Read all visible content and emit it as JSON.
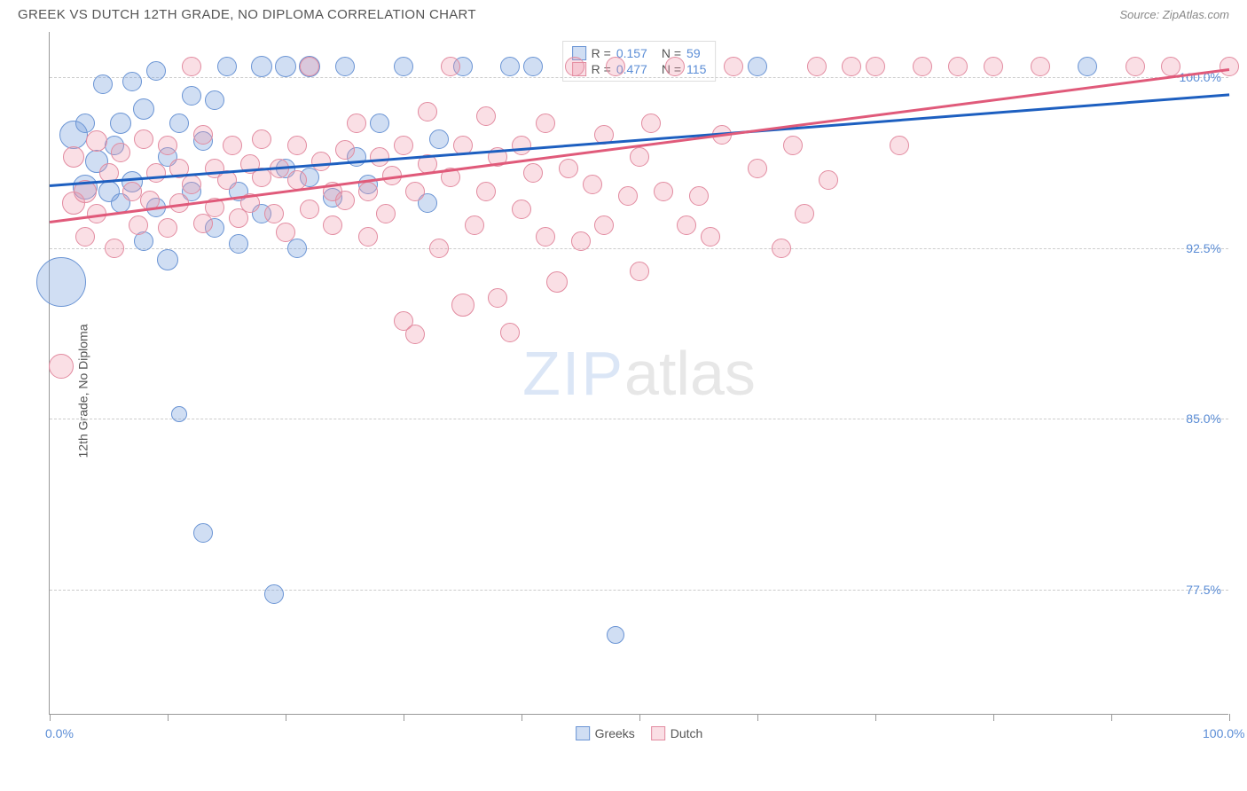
{
  "header": {
    "title": "GREEK VS DUTCH 12TH GRADE, NO DIPLOMA CORRELATION CHART",
    "source": "Source: ZipAtlas.com"
  },
  "chart": {
    "type": "scatter",
    "y_axis_label": "12th Grade, No Diploma",
    "xlim": [
      0,
      100
    ],
    "ylim": [
      72,
      102
    ],
    "x_ticks": [
      0,
      10,
      20,
      30,
      40,
      50,
      60,
      70,
      80,
      90,
      100
    ],
    "x_tick_labels": {
      "0": "0.0%",
      "100": "100.0%"
    },
    "y_grid": [
      77.5,
      85.0,
      92.5,
      100.0
    ],
    "y_tick_labels": [
      "77.5%",
      "85.0%",
      "92.5%",
      "100.0%"
    ],
    "background_color": "#ffffff",
    "grid_color": "#cccccc",
    "axis_color": "#999999",
    "tick_label_color": "#5b8dd6",
    "series": [
      {
        "name": "Greeks",
        "fill": "rgba(120,160,220,0.35)",
        "stroke": "#6a94d4",
        "line_color": "#1d5fc0",
        "R": "0.157",
        "N": "59",
        "trend": {
          "x1": 0,
          "y1": 95.3,
          "x2": 100,
          "y2": 99.3
        },
        "points": [
          {
            "x": 1,
            "y": 91.0,
            "r": 28
          },
          {
            "x": 2,
            "y": 97.5,
            "r": 16
          },
          {
            "x": 3,
            "y": 95.2,
            "r": 14
          },
          {
            "x": 3,
            "y": 98.0,
            "r": 11
          },
          {
            "x": 4,
            "y": 96.3,
            "r": 13
          },
          {
            "x": 4.5,
            "y": 99.7,
            "r": 11
          },
          {
            "x": 5,
            "y": 95.0,
            "r": 12
          },
          {
            "x": 5.5,
            "y": 97.0,
            "r": 11
          },
          {
            "x": 6,
            "y": 98.0,
            "r": 12
          },
          {
            "x": 6,
            "y": 94.5,
            "r": 11
          },
          {
            "x": 7,
            "y": 95.4,
            "r": 12
          },
          {
            "x": 7,
            "y": 99.8,
            "r": 11
          },
          {
            "x": 8,
            "y": 92.8,
            "r": 11
          },
          {
            "x": 8,
            "y": 98.6,
            "r": 12
          },
          {
            "x": 9,
            "y": 94.3,
            "r": 11
          },
          {
            "x": 9,
            "y": 100.3,
            "r": 11
          },
          {
            "x": 10,
            "y": 96.5,
            "r": 11
          },
          {
            "x": 10,
            "y": 92.0,
            "r": 12
          },
          {
            "x": 11,
            "y": 85.2,
            "r": 9
          },
          {
            "x": 11,
            "y": 98.0,
            "r": 11
          },
          {
            "x": 12,
            "y": 95.0,
            "r": 11
          },
          {
            "x": 12,
            "y": 99.2,
            "r": 11
          },
          {
            "x": 13,
            "y": 80.0,
            "r": 11
          },
          {
            "x": 13,
            "y": 97.2,
            "r": 11
          },
          {
            "x": 14,
            "y": 93.4,
            "r": 11
          },
          {
            "x": 14,
            "y": 99.0,
            "r": 11
          },
          {
            "x": 15,
            "y": 100.5,
            "r": 11
          },
          {
            "x": 16,
            "y": 95.0,
            "r": 11
          },
          {
            "x": 16,
            "y": 92.7,
            "r": 11
          },
          {
            "x": 18,
            "y": 100.5,
            "r": 12
          },
          {
            "x": 18,
            "y": 94.0,
            "r": 11
          },
          {
            "x": 19,
            "y": 77.3,
            "r": 11
          },
          {
            "x": 20,
            "y": 96.0,
            "r": 11
          },
          {
            "x": 20,
            "y": 100.5,
            "r": 12
          },
          {
            "x": 21,
            "y": 92.5,
            "r": 11
          },
          {
            "x": 22,
            "y": 95.6,
            "r": 11
          },
          {
            "x": 22,
            "y": 100.5,
            "r": 12
          },
          {
            "x": 24,
            "y": 94.7,
            "r": 11
          },
          {
            "x": 25,
            "y": 100.5,
            "r": 11
          },
          {
            "x": 26,
            "y": 96.5,
            "r": 11
          },
          {
            "x": 27,
            "y": 95.3,
            "r": 11
          },
          {
            "x": 28,
            "y": 98.0,
            "r": 11
          },
          {
            "x": 30,
            "y": 100.5,
            "r": 11
          },
          {
            "x": 32,
            "y": 94.5,
            "r": 11
          },
          {
            "x": 33,
            "y": 97.3,
            "r": 11
          },
          {
            "x": 35,
            "y": 100.5,
            "r": 11
          },
          {
            "x": 39,
            "y": 100.5,
            "r": 11
          },
          {
            "x": 41,
            "y": 100.5,
            "r": 11
          },
          {
            "x": 48,
            "y": 75.5,
            "r": 10
          },
          {
            "x": 60,
            "y": 100.5,
            "r": 11
          },
          {
            "x": 88,
            "y": 100.5,
            "r": 11
          }
        ]
      },
      {
        "name": "Dutch",
        "fill": "rgba(240,150,170,0.30)",
        "stroke": "#e28ba0",
        "line_color": "#e05a7a",
        "R": "0.477",
        "N": "115",
        "trend": {
          "x1": 0,
          "y1": 93.7,
          "x2": 100,
          "y2": 100.4
        },
        "points": [
          {
            "x": 1,
            "y": 87.3,
            "r": 14
          },
          {
            "x": 2,
            "y": 94.5,
            "r": 13
          },
          {
            "x": 2,
            "y": 96.5,
            "r": 12
          },
          {
            "x": 3,
            "y": 95.0,
            "r": 13
          },
          {
            "x": 3,
            "y": 93.0,
            "r": 11
          },
          {
            "x": 4,
            "y": 97.2,
            "r": 12
          },
          {
            "x": 4,
            "y": 94.0,
            "r": 11
          },
          {
            "x": 5,
            "y": 95.8,
            "r": 11
          },
          {
            "x": 5.5,
            "y": 92.5,
            "r": 11
          },
          {
            "x": 6,
            "y": 96.7,
            "r": 11
          },
          {
            "x": 7,
            "y": 95.0,
            "r": 11
          },
          {
            "x": 7.5,
            "y": 93.5,
            "r": 11
          },
          {
            "x": 8,
            "y": 97.3,
            "r": 11
          },
          {
            "x": 8.5,
            "y": 94.6,
            "r": 11
          },
          {
            "x": 9,
            "y": 95.8,
            "r": 11
          },
          {
            "x": 10,
            "y": 93.4,
            "r": 11
          },
          {
            "x": 10,
            "y": 97.0,
            "r": 11
          },
          {
            "x": 11,
            "y": 94.5,
            "r": 11
          },
          {
            "x": 11,
            "y": 96.0,
            "r": 11
          },
          {
            "x": 12,
            "y": 95.3,
            "r": 11
          },
          {
            "x": 12,
            "y": 100.5,
            "r": 11
          },
          {
            "x": 13,
            "y": 93.6,
            "r": 11
          },
          {
            "x": 13,
            "y": 97.5,
            "r": 11
          },
          {
            "x": 14,
            "y": 96.0,
            "r": 11
          },
          {
            "x": 14,
            "y": 94.3,
            "r": 11
          },
          {
            "x": 15,
            "y": 95.5,
            "r": 11
          },
          {
            "x": 15.5,
            "y": 97.0,
            "r": 11
          },
          {
            "x": 16,
            "y": 93.8,
            "r": 11
          },
          {
            "x": 17,
            "y": 96.2,
            "r": 11
          },
          {
            "x": 17,
            "y": 94.5,
            "r": 11
          },
          {
            "x": 18,
            "y": 95.6,
            "r": 11
          },
          {
            "x": 18,
            "y": 97.3,
            "r": 11
          },
          {
            "x": 19,
            "y": 94.0,
            "r": 11
          },
          {
            "x": 19.5,
            "y": 96.0,
            "r": 11
          },
          {
            "x": 20,
            "y": 93.2,
            "r": 11
          },
          {
            "x": 21,
            "y": 95.5,
            "r": 11
          },
          {
            "x": 21,
            "y": 97.0,
            "r": 11
          },
          {
            "x": 22,
            "y": 94.2,
            "r": 11
          },
          {
            "x": 22,
            "y": 100.5,
            "r": 11
          },
          {
            "x": 23,
            "y": 96.3,
            "r": 11
          },
          {
            "x": 24,
            "y": 95.0,
            "r": 11
          },
          {
            "x": 24,
            "y": 93.5,
            "r": 11
          },
          {
            "x": 25,
            "y": 96.8,
            "r": 11
          },
          {
            "x": 25,
            "y": 94.6,
            "r": 11
          },
          {
            "x": 26,
            "y": 98.0,
            "r": 11
          },
          {
            "x": 27,
            "y": 95.0,
            "r": 11
          },
          {
            "x": 27,
            "y": 93.0,
            "r": 11
          },
          {
            "x": 28,
            "y": 96.5,
            "r": 11
          },
          {
            "x": 28.5,
            "y": 94.0,
            "r": 11
          },
          {
            "x": 29,
            "y": 95.7,
            "r": 11
          },
          {
            "x": 30,
            "y": 89.3,
            "r": 11
          },
          {
            "x": 30,
            "y": 97.0,
            "r": 11
          },
          {
            "x": 31,
            "y": 88.7,
            "r": 11
          },
          {
            "x": 31,
            "y": 95.0,
            "r": 11
          },
          {
            "x": 32,
            "y": 96.2,
            "r": 11
          },
          {
            "x": 32,
            "y": 98.5,
            "r": 11
          },
          {
            "x": 33,
            "y": 92.5,
            "r": 11
          },
          {
            "x": 34,
            "y": 95.6,
            "r": 11
          },
          {
            "x": 34,
            "y": 100.5,
            "r": 11
          },
          {
            "x": 35,
            "y": 90.0,
            "r": 13
          },
          {
            "x": 35,
            "y": 97.0,
            "r": 11
          },
          {
            "x": 36,
            "y": 93.5,
            "r": 11
          },
          {
            "x": 37,
            "y": 98.3,
            "r": 11
          },
          {
            "x": 37,
            "y": 95.0,
            "r": 11
          },
          {
            "x": 38,
            "y": 90.3,
            "r": 11
          },
          {
            "x": 38,
            "y": 96.5,
            "r": 11
          },
          {
            "x": 39,
            "y": 88.8,
            "r": 11
          },
          {
            "x": 40,
            "y": 97.0,
            "r": 11
          },
          {
            "x": 40,
            "y": 94.2,
            "r": 11
          },
          {
            "x": 41,
            "y": 95.8,
            "r": 11
          },
          {
            "x": 42,
            "y": 93.0,
            "r": 11
          },
          {
            "x": 42,
            "y": 98.0,
            "r": 11
          },
          {
            "x": 43,
            "y": 91.0,
            "r": 12
          },
          {
            "x": 44,
            "y": 96.0,
            "r": 11
          },
          {
            "x": 44.5,
            "y": 100.5,
            "r": 11
          },
          {
            "x": 45,
            "y": 92.8,
            "r": 11
          },
          {
            "x": 46,
            "y": 95.3,
            "r": 11
          },
          {
            "x": 47,
            "y": 97.5,
            "r": 11
          },
          {
            "x": 47,
            "y": 93.5,
            "r": 11
          },
          {
            "x": 48,
            "y": 100.5,
            "r": 11
          },
          {
            "x": 49,
            "y": 94.8,
            "r": 11
          },
          {
            "x": 50,
            "y": 91.5,
            "r": 11
          },
          {
            "x": 50,
            "y": 96.5,
            "r": 11
          },
          {
            "x": 51,
            "y": 98.0,
            "r": 11
          },
          {
            "x": 52,
            "y": 95.0,
            "r": 11
          },
          {
            "x": 53,
            "y": 100.5,
            "r": 11
          },
          {
            "x": 54,
            "y": 93.5,
            "r": 11
          },
          {
            "x": 55,
            "y": 94.8,
            "r": 11
          },
          {
            "x": 56,
            "y": 93.0,
            "r": 11
          },
          {
            "x": 57,
            "y": 97.5,
            "r": 11
          },
          {
            "x": 58,
            "y": 100.5,
            "r": 11
          },
          {
            "x": 60,
            "y": 96.0,
            "r": 11
          },
          {
            "x": 62,
            "y": 92.5,
            "r": 11
          },
          {
            "x": 63,
            "y": 97.0,
            "r": 11
          },
          {
            "x": 64,
            "y": 94.0,
            "r": 11
          },
          {
            "x": 65,
            "y": 100.5,
            "r": 11
          },
          {
            "x": 66,
            "y": 95.5,
            "r": 11
          },
          {
            "x": 68,
            "y": 100.5,
            "r": 11
          },
          {
            "x": 70,
            "y": 100.5,
            "r": 11
          },
          {
            "x": 72,
            "y": 97.0,
            "r": 11
          },
          {
            "x": 74,
            "y": 100.5,
            "r": 11
          },
          {
            "x": 77,
            "y": 100.5,
            "r": 11
          },
          {
            "x": 80,
            "y": 100.5,
            "r": 11
          },
          {
            "x": 84,
            "y": 100.5,
            "r": 11
          },
          {
            "x": 92,
            "y": 100.5,
            "r": 11
          },
          {
            "x": 95,
            "y": 100.5,
            "r": 11
          },
          {
            "x": 100,
            "y": 100.5,
            "r": 11
          }
        ]
      }
    ],
    "watermark": {
      "zip": "ZIP",
      "atlas": "atlas"
    },
    "legend_bottom": [
      {
        "label": "Greeks"
      },
      {
        "label": "Dutch"
      }
    ],
    "legend_top_labels": {
      "R": "R  =",
      "N": "N  ="
    }
  }
}
